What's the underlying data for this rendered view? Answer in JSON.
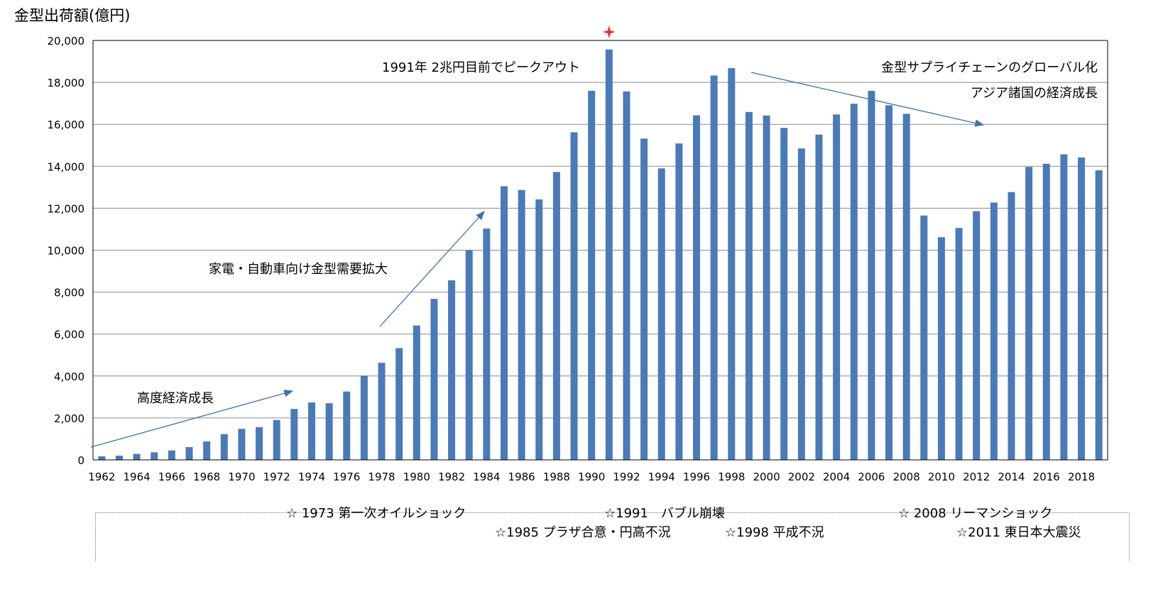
{
  "chart_data": {
    "type": "bar",
    "title": "金型出荷額(億円)",
    "xlabel": "",
    "ylabel": "",
    "ylim": [
      0,
      20000
    ],
    "yticks": [
      "0",
      "2,000",
      "4,000",
      "6,000",
      "8,000",
      "10,000",
      "12,000",
      "14,000",
      "16,000",
      "18,000",
      "20,000"
    ],
    "grid": true,
    "legend": "none",
    "bar_color": "#4a7ab7",
    "categories": [
      1962,
      1963,
      1964,
      1965,
      1966,
      1967,
      1968,
      1969,
      1970,
      1971,
      1972,
      1973,
      1974,
      1975,
      1976,
      1977,
      1978,
      1979,
      1980,
      1981,
      1982,
      1983,
      1984,
      1985,
      1986,
      1987,
      1988,
      1989,
      1990,
      1991,
      1992,
      1993,
      1994,
      1995,
      1996,
      1997,
      1998,
      1999,
      2000,
      2001,
      2002,
      2003,
      2004,
      2005,
      2006,
      2007,
      2008,
      2009,
      2010,
      2011,
      2012,
      2013,
      2014,
      2015,
      2016,
      2017,
      2018,
      2019
    ],
    "tick_labels": [
      "1962",
      "1964",
      "1966",
      "1968",
      "1970",
      "1972",
      "1974",
      "1976",
      "1978",
      "1980",
      "1982",
      "1984",
      "1986",
      "1988",
      "1990",
      "1992",
      "1994",
      "1996",
      "1998",
      "2000",
      "2002",
      "2004",
      "2006",
      "2008",
      "2010",
      "2012",
      "2014",
      "2016",
      "2018"
    ],
    "values": [
      170,
      200,
      290,
      360,
      450,
      610,
      880,
      1230,
      1480,
      1560,
      1900,
      2430,
      2740,
      2700,
      3260,
      4020,
      4630,
      5330,
      6410,
      7680,
      8560,
      10000,
      11030,
      13050,
      12870,
      12420,
      13730,
      15620,
      17600,
      19570,
      17570,
      15320,
      13900,
      15090,
      16430,
      18330,
      18680,
      16590,
      16420,
      15830,
      14850,
      15510,
      16470,
      16980,
      17600,
      16910,
      16500,
      11650,
      10620,
      11060,
      11860,
      12270,
      12770,
      13970,
      14120,
      14570,
      14420,
      13810
    ],
    "annotations": [
      {
        "text": "高度経済成長"
      },
      {
        "text": "家電・自動車向け金型需要拡大"
      },
      {
        "text": "1991年 2兆円目前でピークアウト"
      },
      {
        "text": "金型サプライチェーンのグローバル化"
      },
      {
        "text": "アジア諸国の経済成長"
      }
    ],
    "peak_marker_color": "#e03030",
    "arrow_color": "#3f72ad"
  },
  "events": [
    {
      "text": "☆ 1973 第一次オイルショック"
    },
    {
      "text": "☆1985 プラザ合意・円高不況"
    },
    {
      "text": "☆1991　バブル崩壊"
    },
    {
      "text": "☆1998 平成不況"
    },
    {
      "text": "☆ 2008 リーマンショック"
    },
    {
      "text": "☆2011 東日本大震災"
    }
  ]
}
